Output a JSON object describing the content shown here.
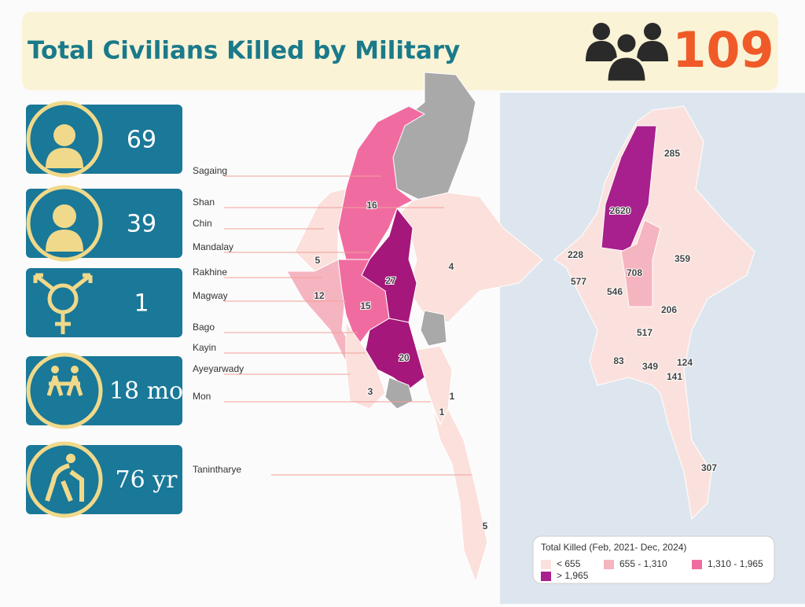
{
  "header": {
    "title": "Total Civilians Killed by Military",
    "total": 109
  },
  "stats": [
    69,
    39,
    1,
    "18 mo",
    "76 yr"
  ],
  "regions": [
    "Sagaing",
    "Shan",
    "Chin",
    "Mandalay",
    "Rakhine",
    "Magway",
    "Bago",
    "Kayin",
    "Ayeyarwady",
    "Mon",
    "Tanintharye"
  ],
  "left_map_values": [
    16,
    4,
    5,
    12,
    27,
    15,
    20,
    3,
    1,
    1,
    5
  ],
  "right_map_values": [
    285,
    2620,
    228,
    708,
    359,
    577,
    546,
    206,
    517,
    83,
    349,
    124,
    141,
    307
  ],
  "legend": {
    "title": "Total Killed (Feb, 2021- Dec, 2024)",
    "items": [
      {
        "label": "< 655",
        "color": "#fbe1dd"
      },
      {
        "label": "655 - 1,310",
        "color": "#f5b5c0"
      },
      {
        "label": "1,310 - 1,965",
        "color": "#f06ca0"
      },
      {
        "label": "> 1,965",
        "color": "#a8208e"
      }
    ]
  }
}
